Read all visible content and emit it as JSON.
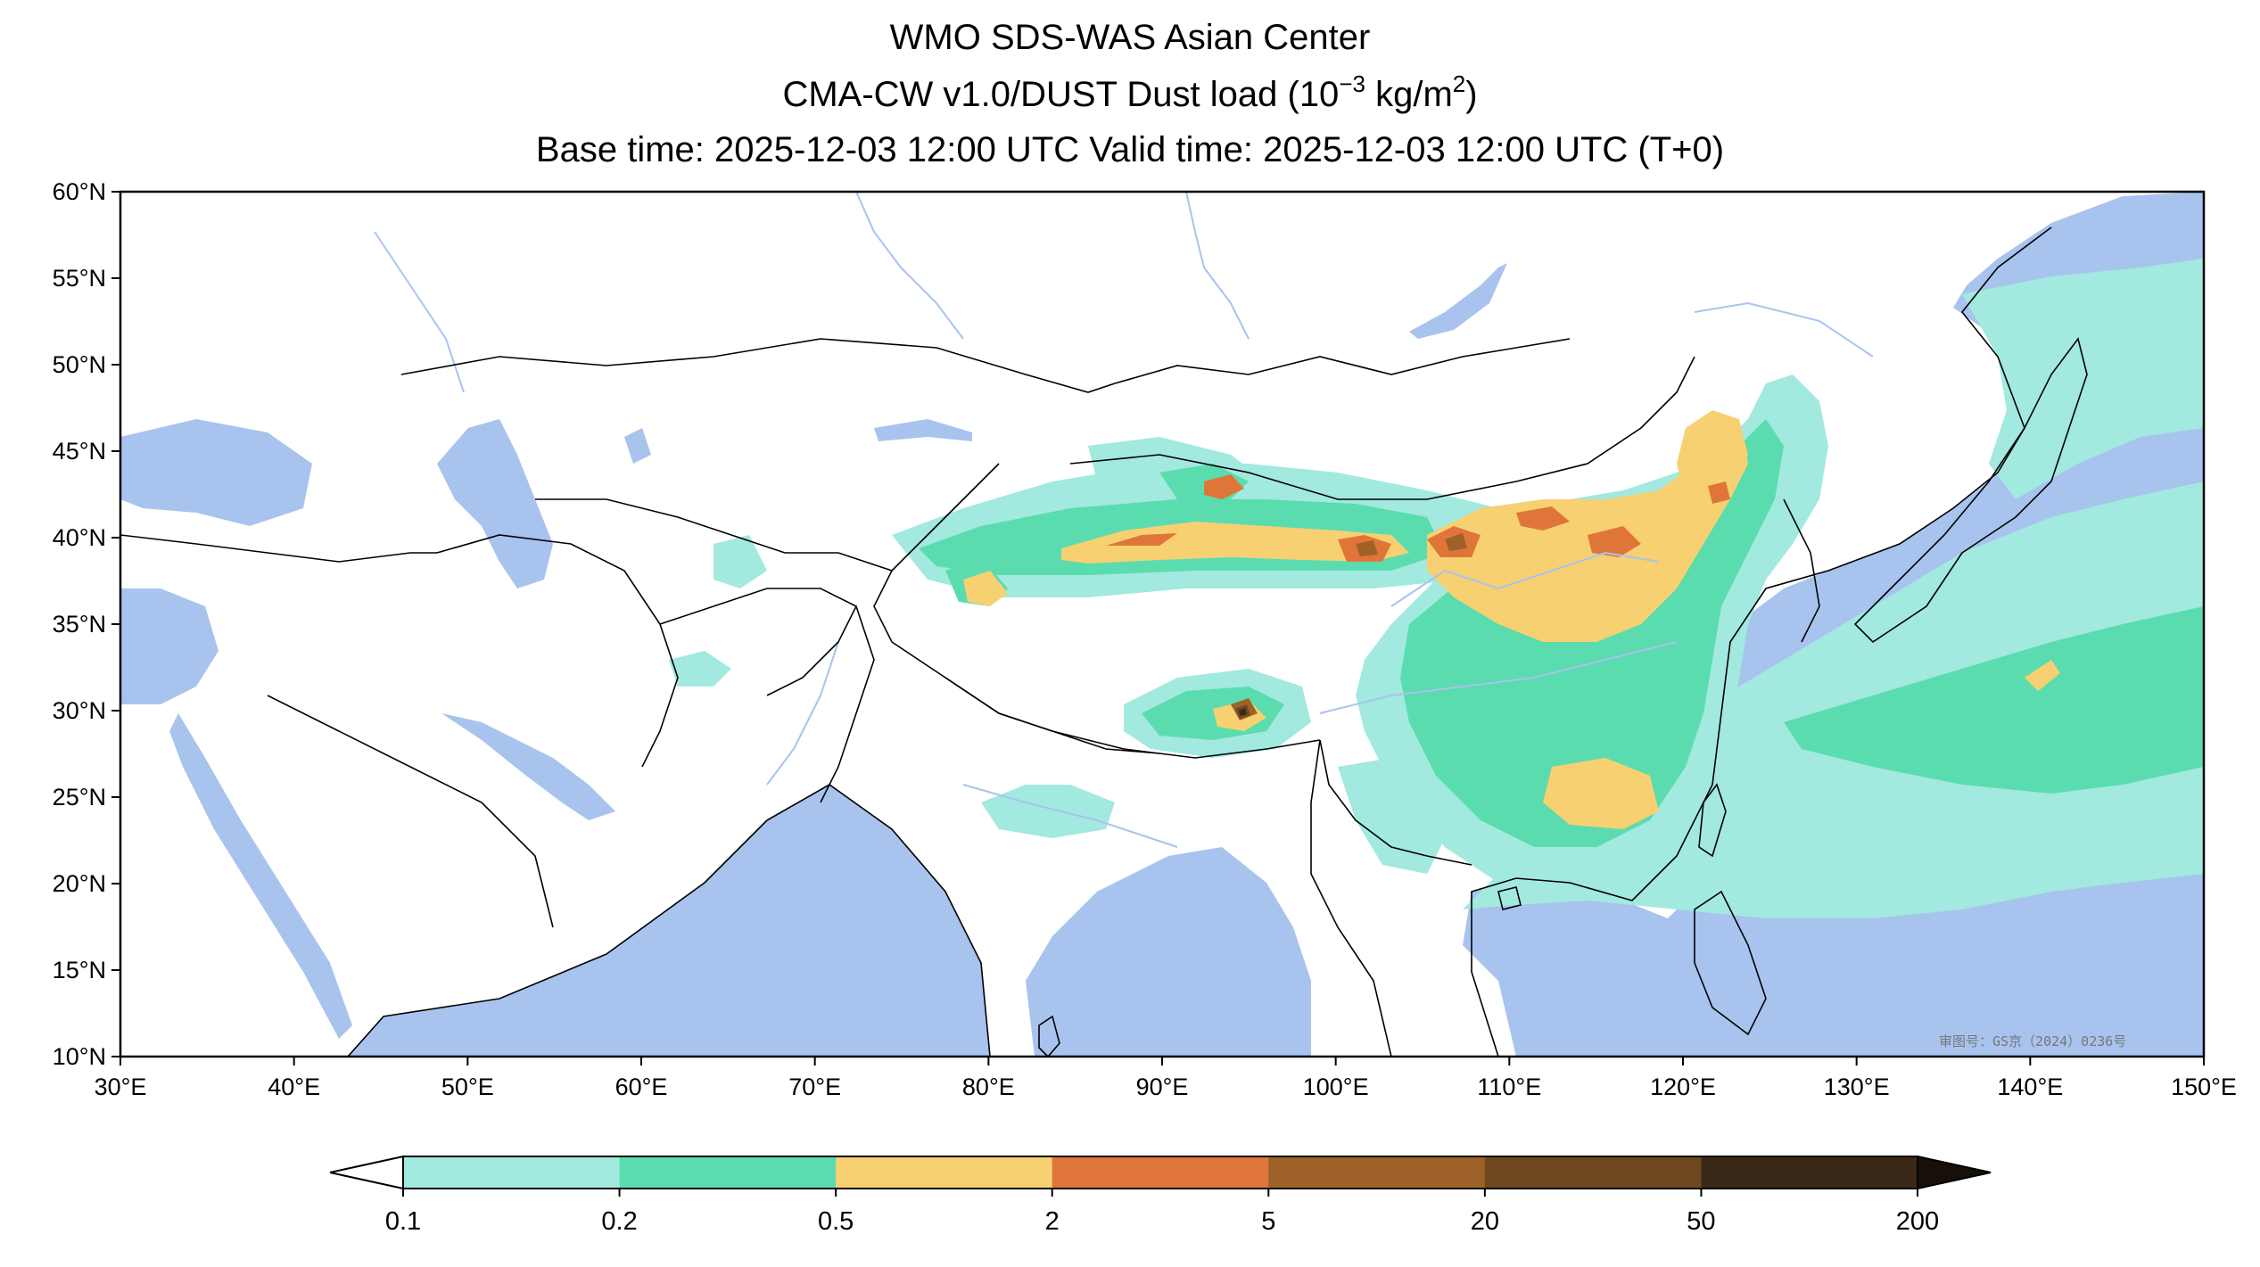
{
  "title": {
    "line1": "WMO SDS-WAS Asian Center",
    "line2_main": "CMA-CW v1.0/DUST Dust load (10",
    "line2_sup_exp": "−3",
    "line2_unit": " kg/m",
    "line2_sup_unit": "2",
    "line2_end": ")",
    "line3": "Base time: 2025-12-03 12:00 UTC Valid time: 2025-12-03 12:00 UTC (T+0)"
  },
  "watermark": "审图号：GS京（2024）0236号",
  "map": {
    "lon_range": [
      30,
      150
    ],
    "lat_range": [
      10,
      60
    ],
    "lon_ticks": [
      "30°E",
      "40°E",
      "50°E",
      "60°E",
      "70°E",
      "80°E",
      "90°E",
      "100°E",
      "110°E",
      "120°E",
      "130°E",
      "140°E",
      "150°E"
    ],
    "lat_ticks": [
      "10°N",
      "15°N",
      "20°N",
      "25°N",
      "30°N",
      "35°N",
      "40°N",
      "45°N",
      "50°N",
      "55°N",
      "60°N"
    ],
    "ocean_color": "#a8c3ee",
    "land_color": "#ffffff",
    "border_color": "#000000",
    "river_color": "#a8c3ee"
  },
  "colorbar": {
    "levels": [
      "0.1",
      "0.2",
      "0.5",
      "2",
      "5",
      "20",
      "50",
      "200"
    ],
    "colors": [
      "#a2e9df",
      "#5bdcaf",
      "#f7d072",
      "#e0753a",
      "#9e6228",
      "#6e4820",
      "#3b2917"
    ],
    "under_color": "#ffffff",
    "over_color": "#161008"
  }
}
